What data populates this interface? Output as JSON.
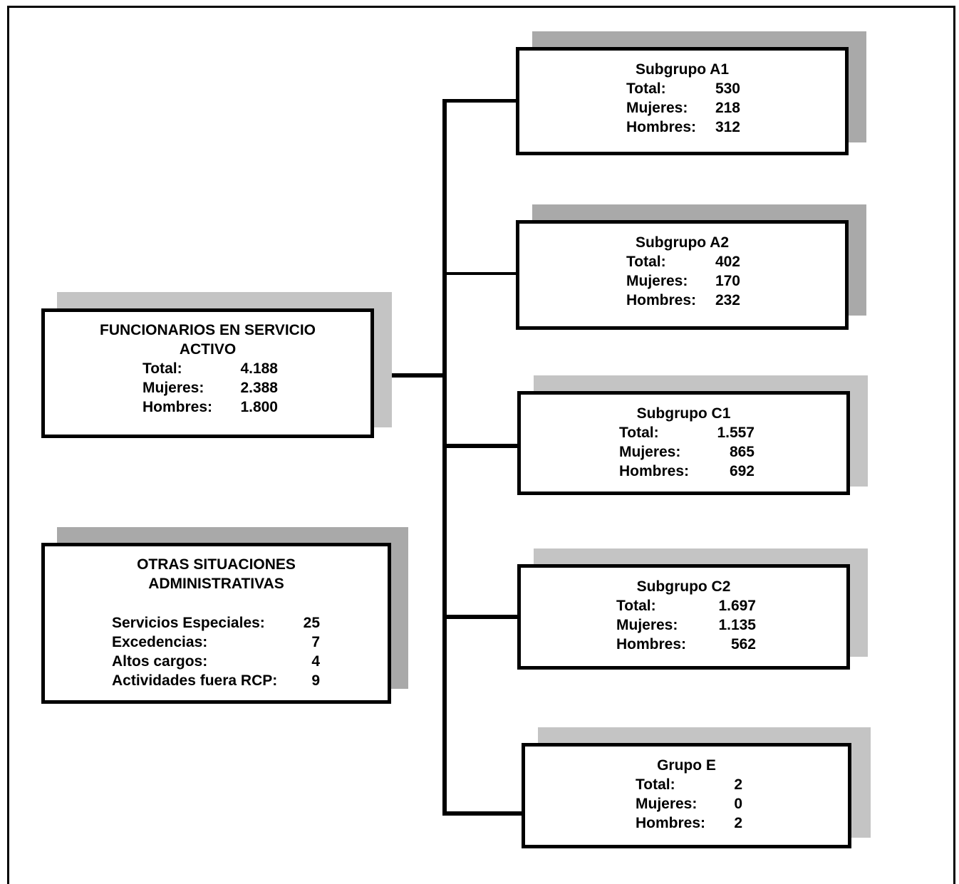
{
  "main": {
    "title": "FUNCIONARIOS EN SERVICIO ACTIVO",
    "rows": [
      {
        "label": "Total:",
        "value": "4.188"
      },
      {
        "label": "Mujeres:",
        "value": "2.388"
      },
      {
        "label": "Hombres:",
        "value": "1.800"
      }
    ]
  },
  "otras": {
    "title": "OTRAS SITUACIONES ADMINISTRATIVAS",
    "rows": [
      {
        "label": "Servicios Especiales:",
        "value": "25"
      },
      {
        "label": "Excedencias:",
        "value": "7"
      },
      {
        "label": "Altos cargos:",
        "value": "4"
      },
      {
        "label": "Actividades fuera RCP:",
        "value": "9"
      }
    ]
  },
  "groups": [
    {
      "title": "Subgrupo A1",
      "total_label": "Total:",
      "total": "530",
      "mujeres_label": "Mujeres:",
      "mujeres": "218",
      "hombres_label": "Hombres:",
      "hombres": "312"
    },
    {
      "title": "Subgrupo A2",
      "total_label": "Total:",
      "total": "402",
      "mujeres_label": "Mujeres:",
      "mujeres": "170",
      "hombres_label": "Hombres:",
      "hombres": "232"
    },
    {
      "title": "Subgrupo C1",
      "total_label": "Total:",
      "total": "1.557",
      "mujeres_label": "Mujeres:",
      "mujeres": "865",
      "hombres_label": "Hombres:",
      "hombres": "692"
    },
    {
      "title": "Subgrupo C2",
      "total_label": "Total:",
      "total": "1.697",
      "mujeres_label": "Mujeres:",
      "mujeres": "1.135",
      "hombres_label": "Hombres:",
      "hombres": "562"
    },
    {
      "title": "Grupo E",
      "total_label": "Total:",
      "total": "2",
      "mujeres_label": "Mujeres:",
      "mujeres": "0",
      "hombres_label": "Hombres:",
      "hombres": "2"
    }
  ],
  "colors": {
    "border": "#000000",
    "shadow": "#a9a9a9",
    "background": "#ffffff"
  }
}
